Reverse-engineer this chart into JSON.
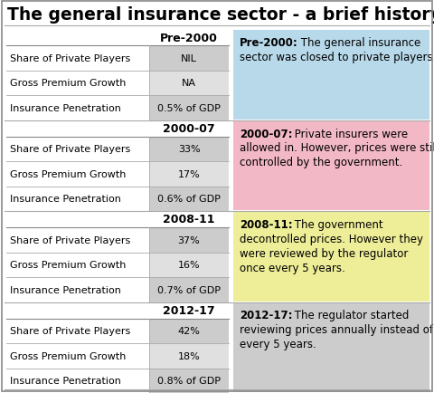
{
  "title": "The general insurance sector - a brief history",
  "periods": [
    "Pre-2000",
    "2000-07",
    "2008-11",
    "2012-17"
  ],
  "rows": [
    "Share of Private Players",
    "Gross Premium Growth",
    "Insurance Penetration"
  ],
  "values": [
    [
      "NIL",
      "NA",
      "0.5% of GDP"
    ],
    [
      "33%",
      "17%",
      "0.6% of GDP"
    ],
    [
      "37%",
      "16%",
      "0.7% of GDP"
    ],
    [
      "42%",
      "18%",
      "0.8% of GDP"
    ]
  ],
  "descriptions": [
    [
      "Pre-2000:",
      " The general insurance\nsector was closed to private players."
    ],
    [
      "2000-07:",
      " Private insurers were\nallowed in. However, prices were still\ncontrolled by the government."
    ],
    [
      "2008-11:",
      " The government\ndecontrolled prices. However they\nwere reviewed by the regulator\nonce every 5 years."
    ],
    [
      "2012-17:",
      " The regulator started\nreviewing prices annually instead of\nevery 5 years."
    ]
  ],
  "box_colors": [
    "#b8d9ea",
    "#f2b8c6",
    "#eeee99",
    "#cccccc"
  ],
  "val_bg_odd": "#cccccc",
  "val_bg_even": "#e0e0e0",
  "separator_color": "#aaaaaa",
  "border_color": "#888888",
  "font_color": "#000000",
  "title_fontsize": 13.5,
  "period_fontsize": 9,
  "row_fontsize": 8,
  "desc_fontsize": 8.5
}
